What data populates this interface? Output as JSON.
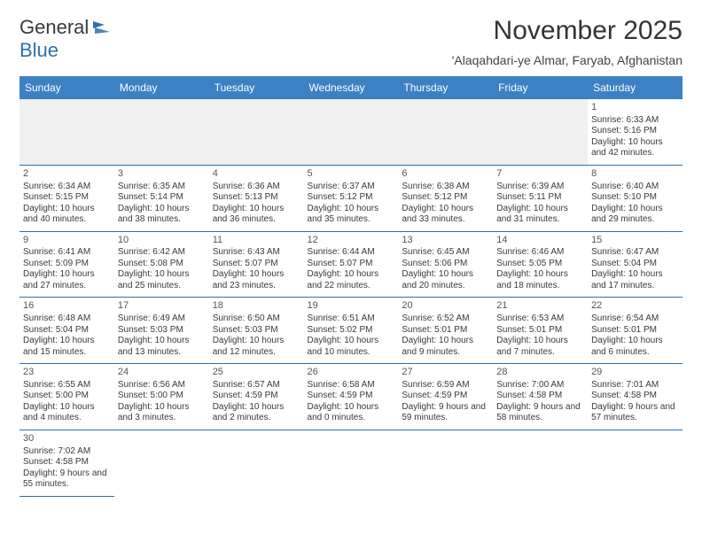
{
  "logo": {
    "text1": "General",
    "text2": "Blue",
    "flag_color": "#2f6fab"
  },
  "title": "November 2025",
  "subtitle": "'Alaqahdari-ye Almar, Faryab, Afghanistan",
  "colors": {
    "header_bg": "#3c81c4",
    "header_text": "#ffffff",
    "row_border": "#2f6fab",
    "shaded": "#f0f0f0",
    "text": "#3a3a3a"
  },
  "weekdays": [
    "Sunday",
    "Monday",
    "Tuesday",
    "Wednesday",
    "Thursday",
    "Friday",
    "Saturday"
  ],
  "grid": [
    [
      null,
      null,
      null,
      null,
      null,
      null,
      {
        "n": "1",
        "sr": "Sunrise: 6:33 AM",
        "ss": "Sunset: 5:16 PM",
        "dl": "Daylight: 10 hours and 42 minutes."
      }
    ],
    [
      {
        "n": "2",
        "sr": "Sunrise: 6:34 AM",
        "ss": "Sunset: 5:15 PM",
        "dl": "Daylight: 10 hours and 40 minutes."
      },
      {
        "n": "3",
        "sr": "Sunrise: 6:35 AM",
        "ss": "Sunset: 5:14 PM",
        "dl": "Daylight: 10 hours and 38 minutes."
      },
      {
        "n": "4",
        "sr": "Sunrise: 6:36 AM",
        "ss": "Sunset: 5:13 PM",
        "dl": "Daylight: 10 hours and 36 minutes."
      },
      {
        "n": "5",
        "sr": "Sunrise: 6:37 AM",
        "ss": "Sunset: 5:12 PM",
        "dl": "Daylight: 10 hours and 35 minutes."
      },
      {
        "n": "6",
        "sr": "Sunrise: 6:38 AM",
        "ss": "Sunset: 5:12 PM",
        "dl": "Daylight: 10 hours and 33 minutes."
      },
      {
        "n": "7",
        "sr": "Sunrise: 6:39 AM",
        "ss": "Sunset: 5:11 PM",
        "dl": "Daylight: 10 hours and 31 minutes."
      },
      {
        "n": "8",
        "sr": "Sunrise: 6:40 AM",
        "ss": "Sunset: 5:10 PM",
        "dl": "Daylight: 10 hours and 29 minutes."
      }
    ],
    [
      {
        "n": "9",
        "sr": "Sunrise: 6:41 AM",
        "ss": "Sunset: 5:09 PM",
        "dl": "Daylight: 10 hours and 27 minutes."
      },
      {
        "n": "10",
        "sr": "Sunrise: 6:42 AM",
        "ss": "Sunset: 5:08 PM",
        "dl": "Daylight: 10 hours and 25 minutes."
      },
      {
        "n": "11",
        "sr": "Sunrise: 6:43 AM",
        "ss": "Sunset: 5:07 PM",
        "dl": "Daylight: 10 hours and 23 minutes."
      },
      {
        "n": "12",
        "sr": "Sunrise: 6:44 AM",
        "ss": "Sunset: 5:07 PM",
        "dl": "Daylight: 10 hours and 22 minutes."
      },
      {
        "n": "13",
        "sr": "Sunrise: 6:45 AM",
        "ss": "Sunset: 5:06 PM",
        "dl": "Daylight: 10 hours and 20 minutes."
      },
      {
        "n": "14",
        "sr": "Sunrise: 6:46 AM",
        "ss": "Sunset: 5:05 PM",
        "dl": "Daylight: 10 hours and 18 minutes."
      },
      {
        "n": "15",
        "sr": "Sunrise: 6:47 AM",
        "ss": "Sunset: 5:04 PM",
        "dl": "Daylight: 10 hours and 17 minutes."
      }
    ],
    [
      {
        "n": "16",
        "sr": "Sunrise: 6:48 AM",
        "ss": "Sunset: 5:04 PM",
        "dl": "Daylight: 10 hours and 15 minutes."
      },
      {
        "n": "17",
        "sr": "Sunrise: 6:49 AM",
        "ss": "Sunset: 5:03 PM",
        "dl": "Daylight: 10 hours and 13 minutes."
      },
      {
        "n": "18",
        "sr": "Sunrise: 6:50 AM",
        "ss": "Sunset: 5:03 PM",
        "dl": "Daylight: 10 hours and 12 minutes."
      },
      {
        "n": "19",
        "sr": "Sunrise: 6:51 AM",
        "ss": "Sunset: 5:02 PM",
        "dl": "Daylight: 10 hours and 10 minutes."
      },
      {
        "n": "20",
        "sr": "Sunrise: 6:52 AM",
        "ss": "Sunset: 5:01 PM",
        "dl": "Daylight: 10 hours and 9 minutes."
      },
      {
        "n": "21",
        "sr": "Sunrise: 6:53 AM",
        "ss": "Sunset: 5:01 PM",
        "dl": "Daylight: 10 hours and 7 minutes."
      },
      {
        "n": "22",
        "sr": "Sunrise: 6:54 AM",
        "ss": "Sunset: 5:01 PM",
        "dl": "Daylight: 10 hours and 6 minutes."
      }
    ],
    [
      {
        "n": "23",
        "sr": "Sunrise: 6:55 AM",
        "ss": "Sunset: 5:00 PM",
        "dl": "Daylight: 10 hours and 4 minutes."
      },
      {
        "n": "24",
        "sr": "Sunrise: 6:56 AM",
        "ss": "Sunset: 5:00 PM",
        "dl": "Daylight: 10 hours and 3 minutes."
      },
      {
        "n": "25",
        "sr": "Sunrise: 6:57 AM",
        "ss": "Sunset: 4:59 PM",
        "dl": "Daylight: 10 hours and 2 minutes."
      },
      {
        "n": "26",
        "sr": "Sunrise: 6:58 AM",
        "ss": "Sunset: 4:59 PM",
        "dl": "Daylight: 10 hours and 0 minutes."
      },
      {
        "n": "27",
        "sr": "Sunrise: 6:59 AM",
        "ss": "Sunset: 4:59 PM",
        "dl": "Daylight: 9 hours and 59 minutes."
      },
      {
        "n": "28",
        "sr": "Sunrise: 7:00 AM",
        "ss": "Sunset: 4:58 PM",
        "dl": "Daylight: 9 hours and 58 minutes."
      },
      {
        "n": "29",
        "sr": "Sunrise: 7:01 AM",
        "ss": "Sunset: 4:58 PM",
        "dl": "Daylight: 9 hours and 57 minutes."
      }
    ],
    [
      {
        "n": "30",
        "sr": "Sunrise: 7:02 AM",
        "ss": "Sunset: 4:58 PM",
        "dl": "Daylight: 9 hours and 55 minutes."
      },
      null,
      null,
      null,
      null,
      null,
      null
    ]
  ]
}
